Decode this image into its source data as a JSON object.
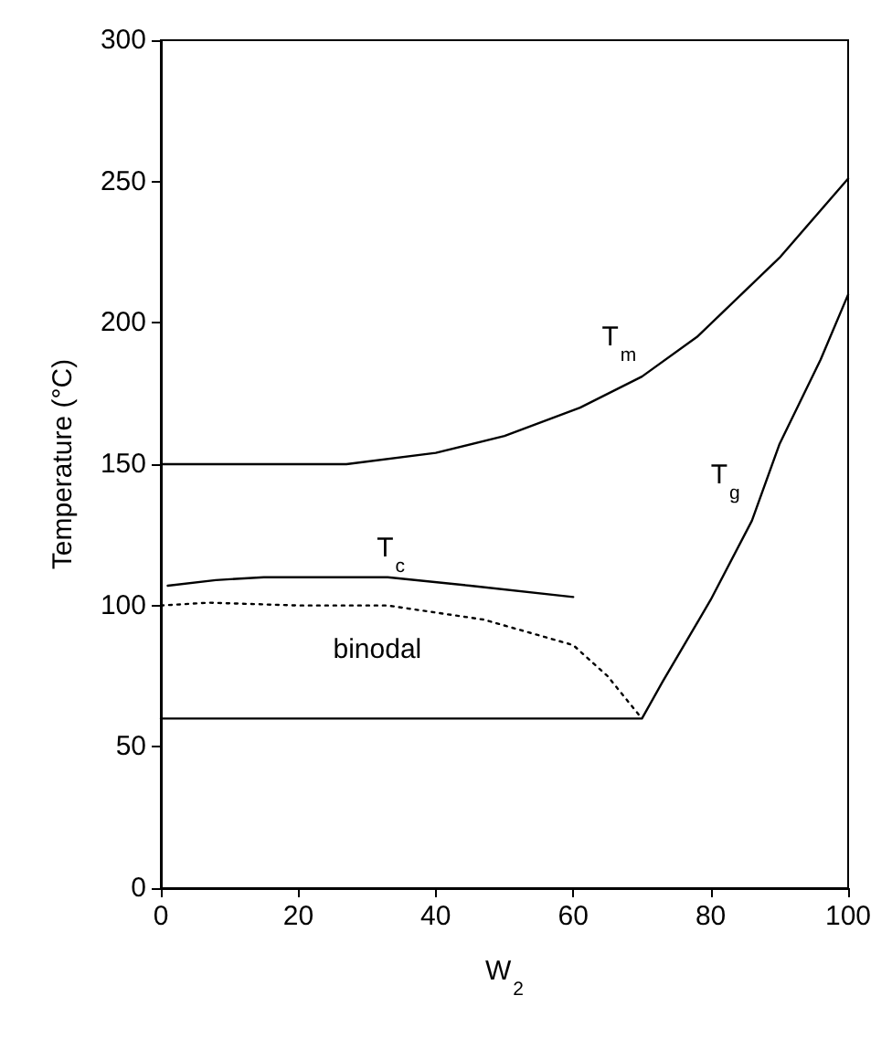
{
  "chart_data": {
    "type": "line",
    "xlabel": "W$_{2}$",
    "ylabel": "Temperature (°C)",
    "xlim": [
      0,
      100
    ],
    "xticks": [
      0,
      20,
      40,
      60,
      80,
      100
    ],
    "ylim": [
      0,
      300
    ],
    "yticks": [
      0,
      50,
      100,
      150,
      200,
      250,
      300
    ],
    "grid": false,
    "marker": "none",
    "series": [
      {
        "name": "T$_{m}$",
        "color": "#000000",
        "line_style": "solid",
        "x": [
          0,
          27,
          40,
          50,
          61,
          70,
          78,
          90,
          100
        ],
        "values": [
          150,
          150,
          154,
          160,
          170,
          181,
          195,
          223,
          251
        ]
      },
      {
        "name": "T$_{c}$",
        "color": "#000000",
        "line_style": "solid",
        "x": [
          1,
          8,
          15,
          33,
          45,
          60
        ],
        "values": [
          107,
          109,
          110,
          110,
          107,
          103
        ]
      },
      {
        "name": "binodal",
        "color": "#000000",
        "line_style": "dotted",
        "x": [
          0,
          7,
          20,
          33,
          47,
          60,
          65,
          70
        ],
        "values": [
          100,
          101,
          100,
          100,
          95,
          86,
          75,
          60
        ]
      },
      {
        "name": "T$_{g}$",
        "color": "#000000",
        "line_style": "solid",
        "x": [
          0,
          70,
          73,
          80,
          86,
          90,
          96,
          100
        ],
        "values": [
          60,
          60,
          73,
          102,
          130,
          157,
          187,
          210
        ]
      }
    ]
  }
}
